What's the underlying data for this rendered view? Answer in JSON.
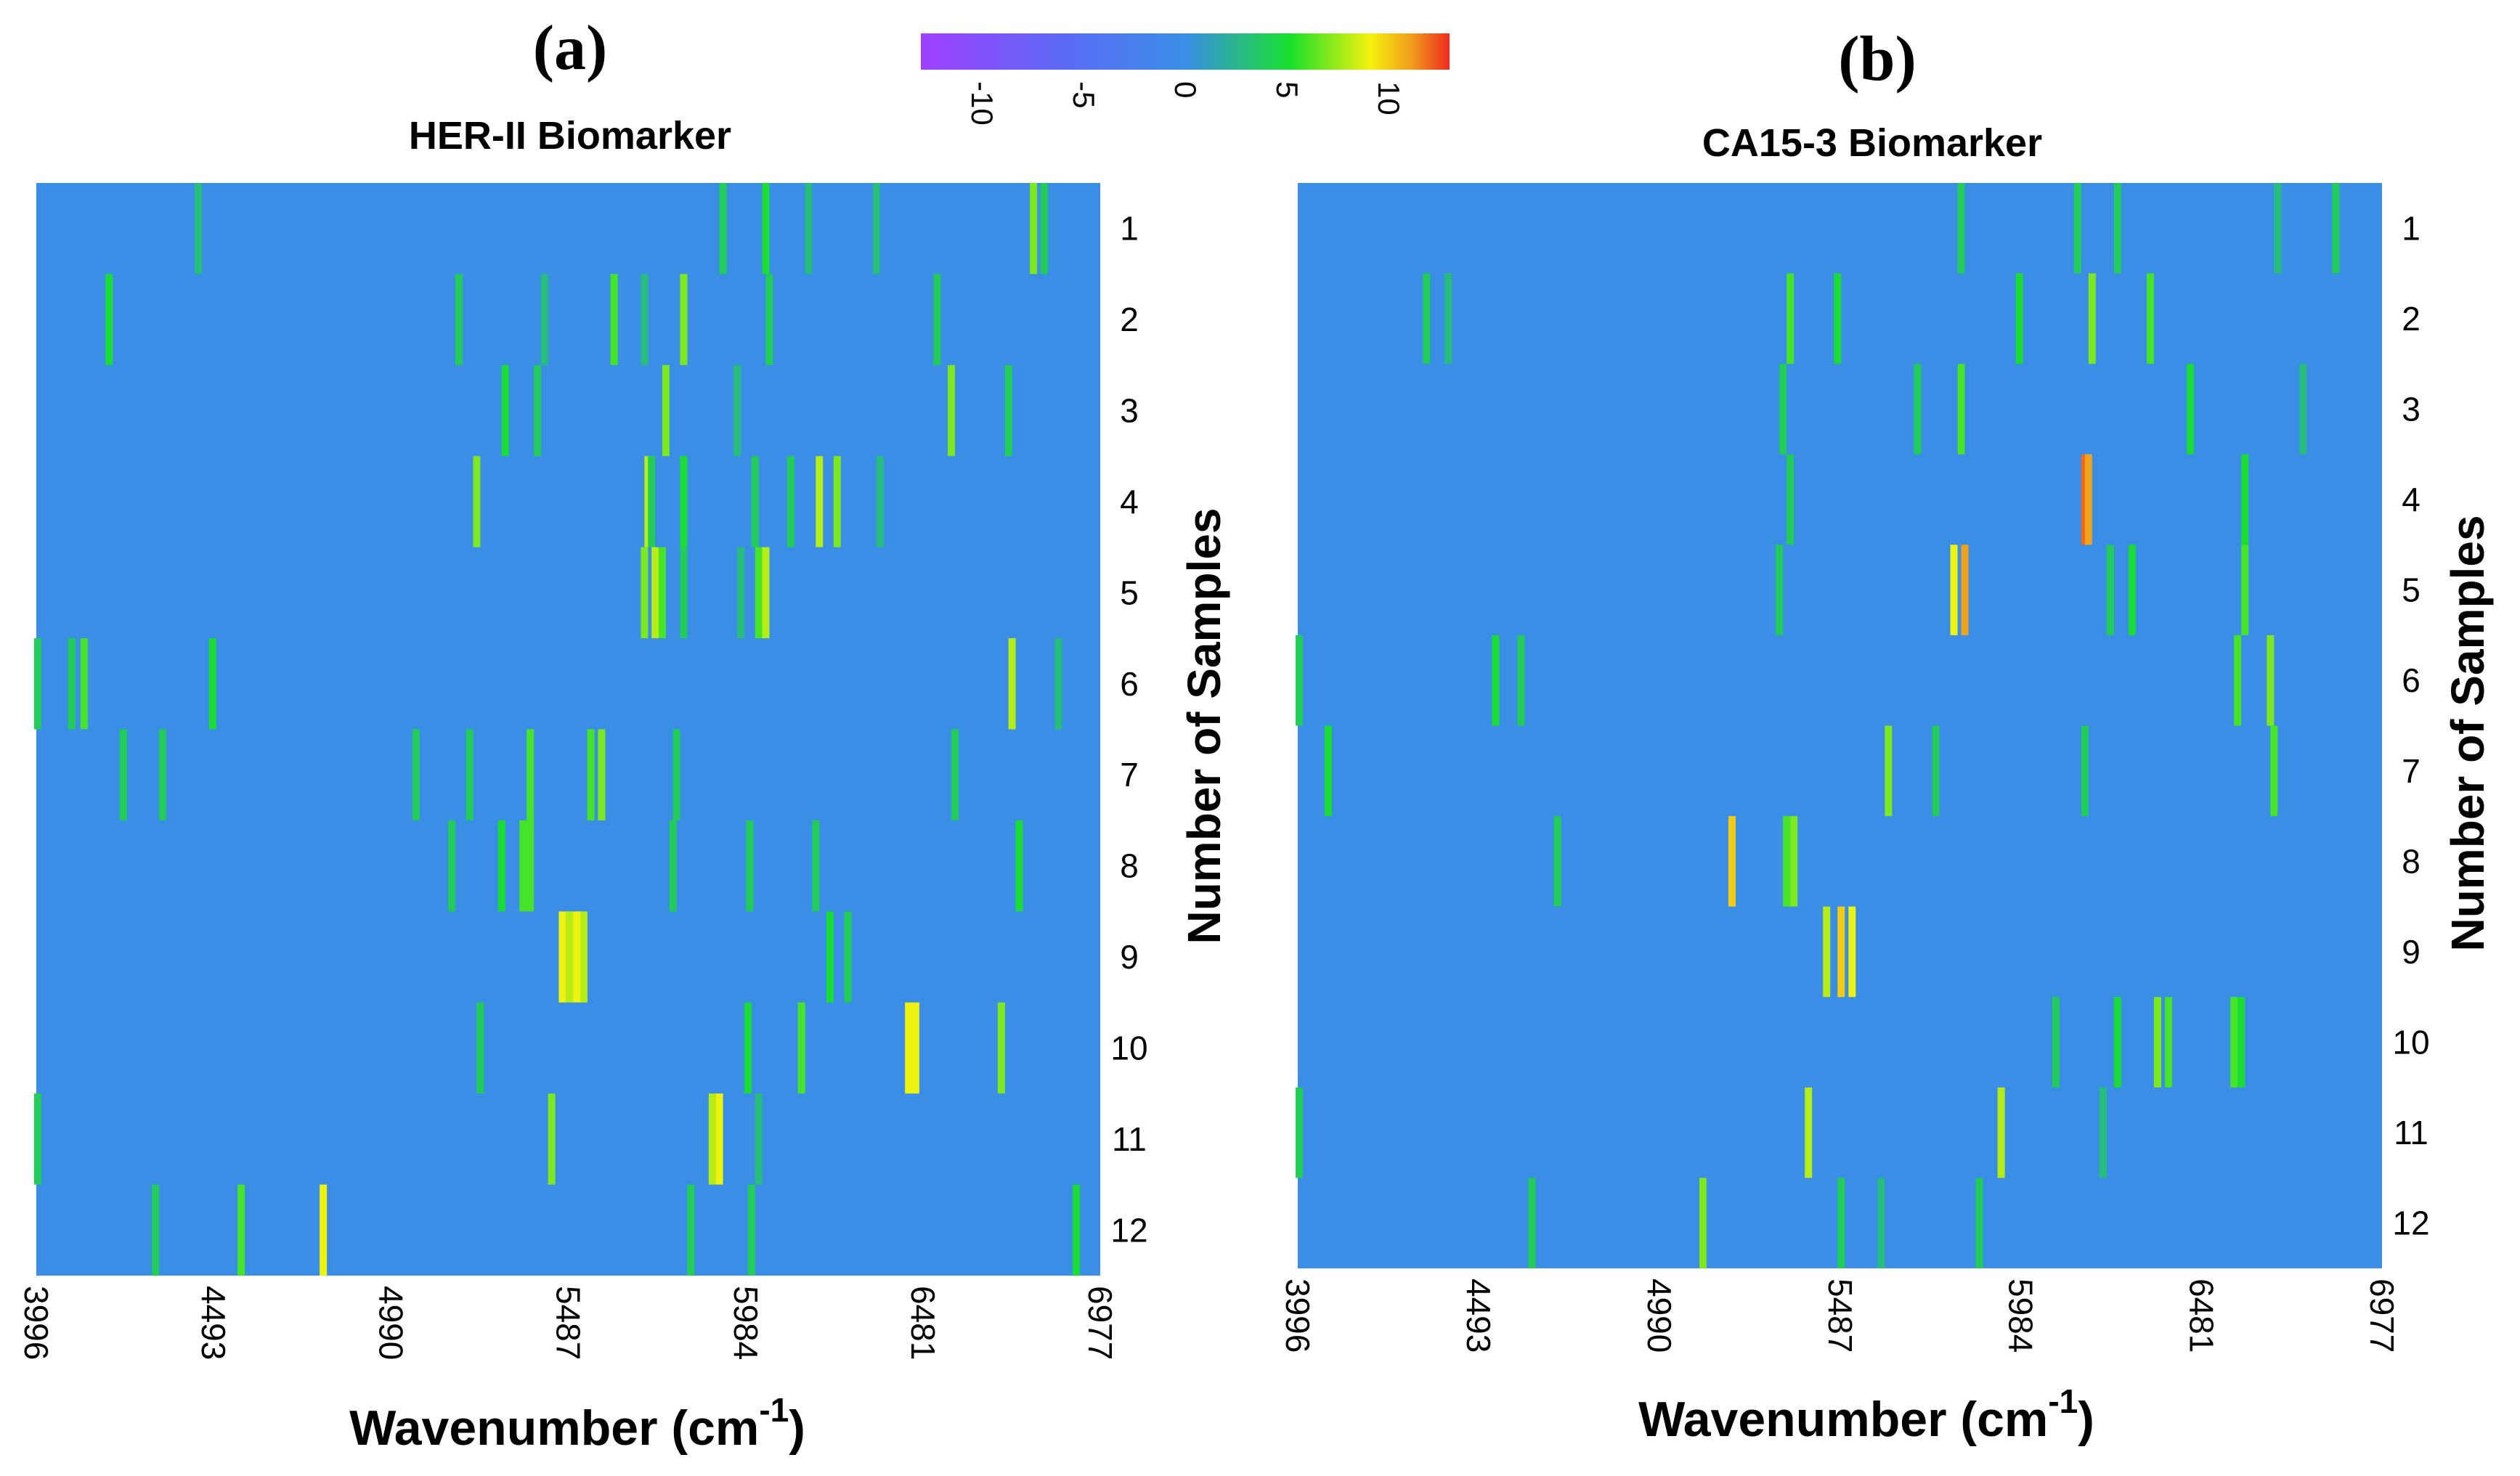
{
  "colorbar": {
    "ticks": [
      "-10",
      "-5",
      "0",
      "5",
      "10"
    ],
    "tick_values": [
      -10,
      -5,
      0,
      5,
      10
    ],
    "range": [
      -13,
      13
    ],
    "colors": [
      "#a040ff",
      "#5a6cf5",
      "#3a8ee6",
      "#19e02c",
      "#f4f20e",
      "#f09a1c",
      "#ee2a20"
    ]
  },
  "chart_data": [
    {
      "panel_label": "(a)",
      "type": "heatmap",
      "title": "HER-II Biomarker",
      "xlabel": "Wavenumber (cm",
      "xlabel_sup": "-1",
      "xlabel_end": ")",
      "ylabel": "Number of Samples",
      "xlim": [
        3996,
        6977
      ],
      "x_ticks": [
        "3996",
        "4493",
        "4990",
        "5487",
        "5984",
        "6481",
        "6977"
      ],
      "x_tick_values": [
        3996,
        4493,
        4990,
        5487,
        5984,
        6481,
        6977
      ],
      "rows": [
        "1",
        "2",
        "3",
        "4",
        "5",
        "6",
        "7",
        "8",
        "9",
        "10",
        "11",
        "12"
      ],
      "background_value": 0,
      "lines": [
        [
          [
            4450,
            3
          ],
          [
            5920,
            4
          ],
          [
            6040,
            5
          ],
          [
            6160,
            3
          ],
          [
            6790,
            7
          ],
          [
            6820,
            4
          ],
          [
            6350,
            3
          ]
        ],
        [
          [
            4200,
            5
          ],
          [
            5180,
            4
          ],
          [
            5615,
            6
          ],
          [
            5810,
            7
          ],
          [
            6520,
            4
          ],
          [
            5420,
            3
          ],
          [
            5700,
            3
          ],
          [
            6050,
            4
          ]
        ],
        [
          [
            5310,
            5
          ],
          [
            5400,
            4
          ],
          [
            5760,
            7
          ],
          [
            5960,
            3
          ],
          [
            6560,
            7
          ],
          [
            6720,
            4
          ]
        ],
        [
          [
            5230,
            7
          ],
          [
            5710,
            8
          ],
          [
            5720,
            4
          ],
          [
            5810,
            5
          ],
          [
            6010,
            4
          ],
          [
            6110,
            4
          ],
          [
            6190,
            8
          ],
          [
            6240,
            7
          ],
          [
            6360,
            3
          ]
        ],
        [
          [
            5700,
            7
          ],
          [
            5730,
            8
          ],
          [
            5750,
            6
          ],
          [
            5810,
            4
          ],
          [
            6020,
            6
          ],
          [
            6040,
            8
          ],
          [
            5970,
            3
          ]
        ],
        [
          [
            4000,
            4
          ],
          [
            4095,
            4
          ],
          [
            4130,
            6
          ],
          [
            4490,
            5
          ],
          [
            6730,
            8
          ],
          [
            6860,
            3
          ]
        ],
        [
          [
            4240,
            4
          ],
          [
            4350,
            4
          ],
          [
            5060,
            4
          ],
          [
            5210,
            4
          ],
          [
            5380,
            6
          ],
          [
            5550,
            6
          ],
          [
            5580,
            7
          ],
          [
            5790,
            4
          ],
          [
            6570,
            4
          ]
        ],
        [
          [
            5160,
            4
          ],
          [
            5300,
            5
          ],
          [
            5360,
            6
          ],
          [
            5380,
            6
          ],
          [
            5780,
            4
          ],
          [
            5995,
            4
          ],
          [
            6180,
            4
          ],
          [
            6750,
            5
          ]
        ],
        [
          [
            5470,
            9
          ],
          [
            5490,
            8
          ],
          [
            5510,
            9
          ],
          [
            5530,
            8
          ],
          [
            6220,
            5
          ],
          [
            6270,
            4
          ]
        ],
        [
          [
            5240,
            4
          ],
          [
            5990,
            5
          ],
          [
            6140,
            6
          ],
          [
            6440,
            9
          ],
          [
            6460,
            9
          ],
          [
            6700,
            7
          ]
        ],
        [
          [
            4000,
            4
          ],
          [
            5440,
            7
          ],
          [
            5890,
            8
          ],
          [
            5910,
            9
          ],
          [
            6020,
            3
          ]
        ],
        [
          [
            4330,
            4
          ],
          [
            4570,
            6
          ],
          [
            4800,
            9
          ],
          [
            5830,
            4
          ],
          [
            6000,
            4
          ],
          [
            6910,
            5
          ]
        ]
      ]
    },
    {
      "panel_label": "(b)",
      "type": "heatmap",
      "title": "CA15-3 Biomarker",
      "xlabel": "Wavenumber (cm",
      "xlabel_sup": "-1",
      "xlabel_end": ")",
      "ylabel": "Number of Samples",
      "xlim": [
        3996,
        6977
      ],
      "x_ticks": [
        "3996",
        "4493",
        "4990",
        "5487",
        "5984",
        "6481",
        "6977"
      ],
      "x_tick_values": [
        3996,
        4493,
        4990,
        5487,
        5984,
        6481,
        6977
      ],
      "rows": [
        "1",
        "2",
        "3",
        "4",
        "5",
        "6",
        "7",
        "8",
        "9",
        "10",
        "11",
        "12"
      ],
      "background_value": 0,
      "lines": [
        [
          [
            5820,
            4
          ],
          [
            6140,
            4
          ],
          [
            6250,
            4
          ],
          [
            6690,
            3
          ],
          [
            6850,
            4
          ]
        ],
        [
          [
            4350,
            4
          ],
          [
            4410,
            3
          ],
          [
            5350,
            6
          ],
          [
            5480,
            5
          ],
          [
            5980,
            5
          ],
          [
            6180,
            7
          ],
          [
            6340,
            6
          ]
        ],
        [
          [
            5330,
            4
          ],
          [
            5700,
            4
          ],
          [
            5820,
            6
          ],
          [
            6450,
            5
          ],
          [
            6760,
            3
          ]
        ],
        [
          [
            5350,
            4
          ],
          [
            6160,
            12
          ],
          [
            6170,
            11
          ],
          [
            6600,
            5
          ]
        ],
        [
          [
            5320,
            4
          ],
          [
            5800,
            9
          ],
          [
            5830,
            11
          ],
          [
            6230,
            4
          ],
          [
            6290,
            5
          ],
          [
            6600,
            6
          ]
        ],
        [
          [
            4000,
            4
          ],
          [
            4540,
            5
          ],
          [
            4610,
            4
          ],
          [
            6580,
            6
          ],
          [
            6670,
            7
          ]
        ],
        [
          [
            4080,
            5
          ],
          [
            5620,
            7
          ],
          [
            5750,
            4
          ],
          [
            6160,
            4
          ],
          [
            6680,
            6
          ]
        ],
        [
          [
            5190,
            10
          ],
          [
            5340,
            6
          ],
          [
            5360,
            7
          ],
          [
            4710,
            4
          ]
        ],
        [
          [
            5450,
            8
          ],
          [
            5490,
            10
          ],
          [
            5520,
            9
          ]
        ],
        [
          [
            6080,
            4
          ],
          [
            6250,
            5
          ],
          [
            6360,
            7
          ],
          [
            6390,
            6
          ],
          [
            6570,
            6
          ],
          [
            6590,
            5
          ]
        ],
        [
          [
            4000,
            4
          ],
          [
            5400,
            8
          ],
          [
            5930,
            8
          ],
          [
            6210,
            3
          ]
        ],
        [
          [
            4640,
            4
          ],
          [
            5110,
            7
          ],
          [
            5490,
            4
          ],
          [
            5600,
            3
          ],
          [
            5870,
            4
          ]
        ]
      ]
    }
  ]
}
